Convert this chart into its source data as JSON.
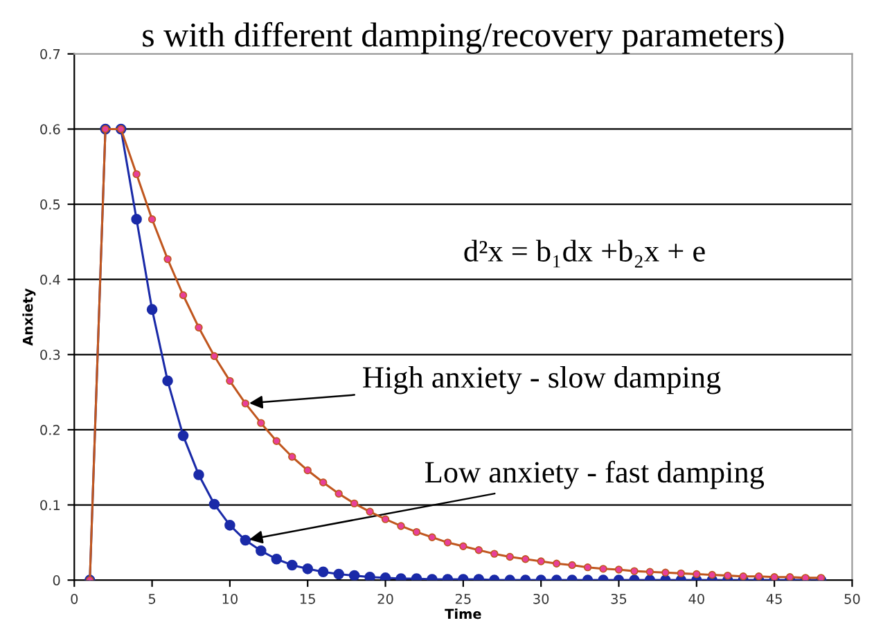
{
  "chart_data": {
    "type": "line",
    "title": "s with different damping/recovery parameters)",
    "xlabel": "Time",
    "ylabel": "Anxiety",
    "x": [
      1,
      2,
      3,
      4,
      5,
      6,
      7,
      8,
      9,
      10,
      11,
      12,
      13,
      14,
      15,
      16,
      17,
      18,
      19,
      20,
      21,
      22,
      23,
      24,
      25,
      26,
      27,
      28,
      29,
      30,
      31,
      32,
      33,
      34,
      35,
      36,
      37,
      38,
      39,
      40,
      41,
      42,
      43,
      44,
      45,
      46,
      47,
      48
    ],
    "series": [
      {
        "color": "#c0561e",
        "values": [
          0,
          0.6,
          0.6,
          0.54,
          0.48,
          0.427,
          0.379,
          0.336,
          0.298,
          0.265,
          0.235,
          0.209,
          0.185,
          0.164,
          0.146,
          0.13,
          0.115,
          0.102,
          0.091,
          0.081,
          0.072,
          0.064,
          0.057,
          0.05,
          0.045,
          0.04,
          0.035,
          0.031,
          0.028,
          0.025,
          0.022,
          0.02,
          0.017,
          0.015,
          0.014,
          0.012,
          0.011,
          0.01,
          0.009,
          0.008,
          0.007,
          0.006,
          0.005,
          0.005,
          0.004,
          0.004,
          0.003,
          0.003
        ]
      },
      {
        "color": "#1a2aa8",
        "values": [
          0,
          0.6,
          0.6,
          0.48,
          0.36,
          0.265,
          0.192,
          0.14,
          0.101,
          0.073,
          0.053,
          0.039,
          0.028,
          0.02,
          0.015,
          0.011,
          0.008,
          0.006,
          0.004,
          0.003,
          0.002,
          0.002,
          0.001,
          0.001,
          0.001,
          0.001,
          0,
          0,
          0,
          0,
          0,
          0,
          0,
          0,
          0,
          0,
          0,
          0,
          0,
          0,
          0,
          0,
          0,
          0,
          0,
          0,
          0,
          0
        ]
      }
    ],
    "annotations": [
      "d²x = b₁dx +b₂x + e",
      {
        "text": "High anxiety - slow damping",
        "x": 11,
        "y": 0.235
      },
      {
        "text": "Low anxiety - fast damping",
        "x": 11,
        "y": 0.053
      }
    ],
    "xlim": [
      0,
      50
    ],
    "xticks": [
      0,
      5,
      10,
      15,
      20,
      25,
      30,
      35,
      40,
      45,
      50
    ],
    "ylim": [
      0,
      0.7
    ],
    "yticks": [
      0,
      0.1,
      0.2,
      0.3,
      0.4,
      0.5,
      0.6,
      0.7
    ],
    "grid": "y",
    "marker": "circle",
    "line_style": "solid",
    "legend": false
  }
}
